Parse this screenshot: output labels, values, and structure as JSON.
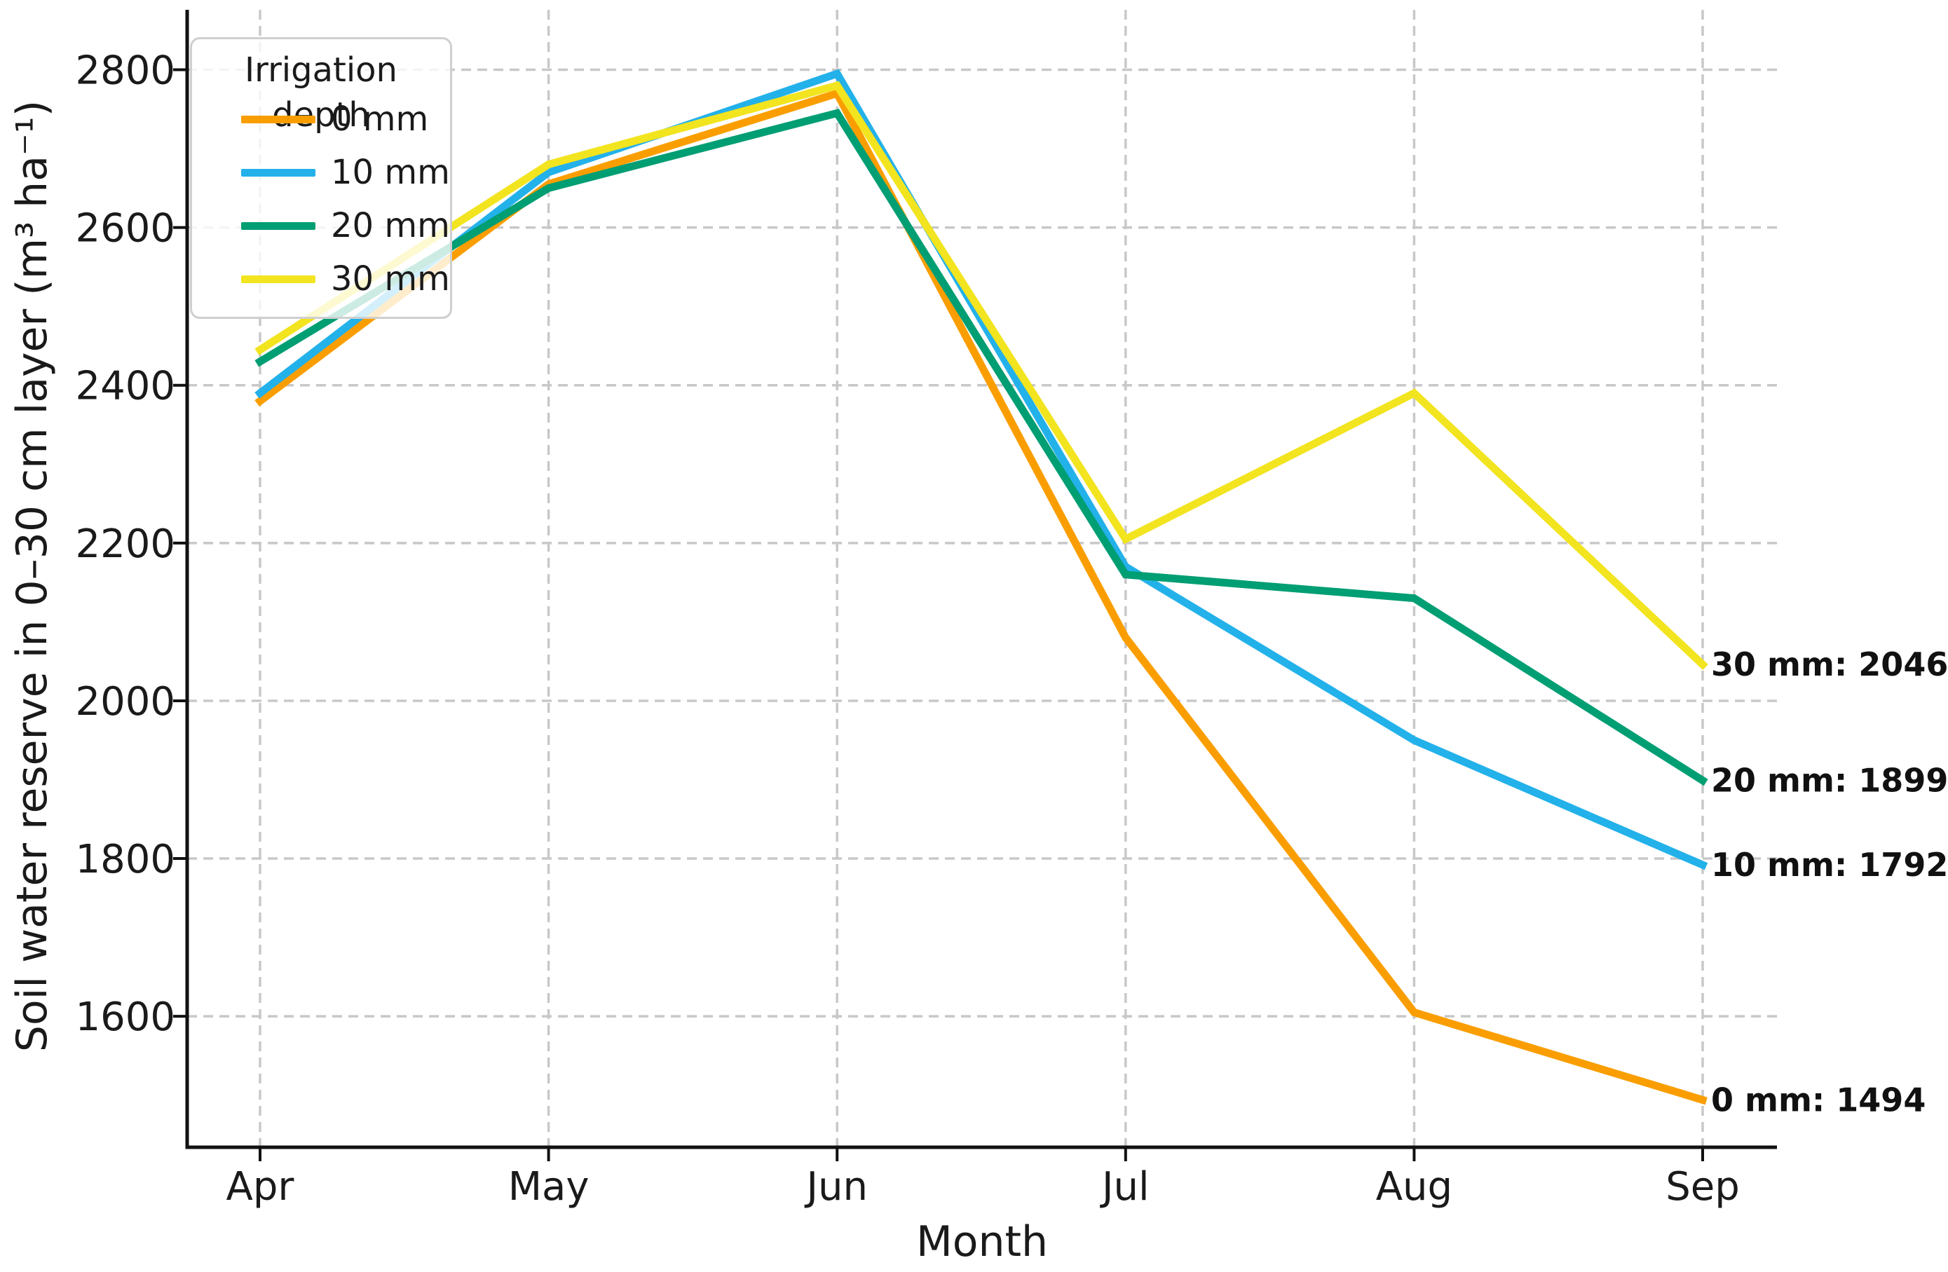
{
  "figure": {
    "background": "#ffffff",
    "axis_color": "#111111",
    "grid_color": "#c8c8c8",
    "text_color": "#1a1a1a"
  },
  "chart_data": {
    "type": "line",
    "title": "",
    "xlabel": "Month",
    "ylabel": "Soil water reserve in 0–30 cm layer (m³ ha⁻¹)",
    "categories": [
      "Apr",
      "May",
      "Jun",
      "Jul",
      "Aug",
      "Sep"
    ],
    "y_ticks": [
      1600,
      1800,
      2000,
      2200,
      2400,
      2600,
      2800
    ],
    "ylim": [
      1434,
      2876
    ],
    "grid": true,
    "legend": {
      "title": "Irrigation depth",
      "position": "upper-left"
    },
    "series": [
      {
        "name": "0 mm",
        "color": "#FA9E00",
        "values": [
          2380,
          2655,
          2770,
          2080,
          1605,
          1494
        ],
        "end_label": "0 mm: 1494"
      },
      {
        "name": "10 mm",
        "color": "#23B1EA",
        "values": [
          2390,
          2670,
          2795,
          2170,
          1950,
          1792
        ],
        "end_label": "10 mm: 1792"
      },
      {
        "name": "20 mm",
        "color": "#009E73",
        "values": [
          2430,
          2650,
          2745,
          2160,
          2130,
          1899
        ],
        "end_label": "20 mm: 1899"
      },
      {
        "name": "30 mm",
        "color": "#F2E41F",
        "values": [
          2445,
          2680,
          2780,
          2205,
          2390,
          2046
        ],
        "end_label": "30 mm: 2046"
      }
    ]
  }
}
